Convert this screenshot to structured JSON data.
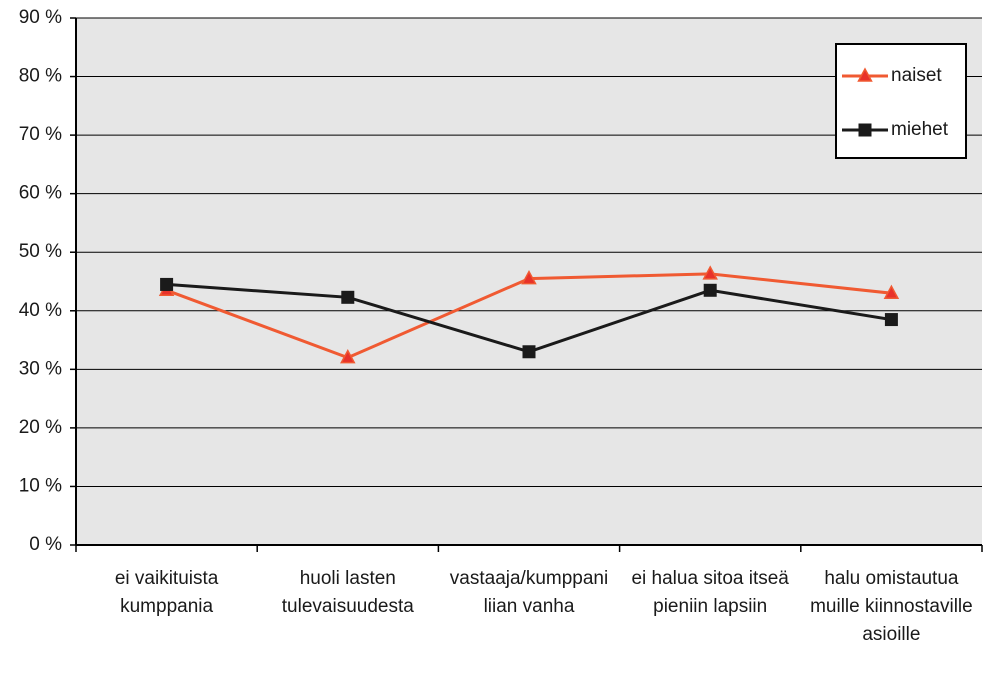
{
  "chart_data": {
    "type": "line",
    "categories": [
      "ei vaikituista kumppania",
      "huoli lasten tulevaisuudesta",
      "vastaaja/kumppani liian vanha",
      "ei halua sitoa itseä pieniin lapsiin",
      "halu omistautua muille kiinnostaville asioille"
    ],
    "series": [
      {
        "name": "naiset",
        "color": "#f05a32",
        "values": [
          43.5,
          32,
          45.5,
          46.3,
          43
        ]
      },
      {
        "name": "miehet",
        "color": "#1a1a1a",
        "values": [
          44.5,
          42.3,
          33,
          43.5,
          38.5
        ]
      }
    ],
    "ylim": [
      0,
      90
    ],
    "yticks": [
      {
        "value": 0,
        "label": "0 %"
      },
      {
        "value": 10,
        "label": "10 %"
      },
      {
        "value": 20,
        "label": "20 %"
      },
      {
        "value": 30,
        "label": "30 %"
      },
      {
        "value": 40,
        "label": "40 %"
      },
      {
        "value": 50,
        "label": "50 %"
      },
      {
        "value": 60,
        "label": "60 %"
      },
      {
        "value": 70,
        "label": "70 %"
      },
      {
        "value": 80,
        "label": "80 %"
      },
      {
        "value": 90,
        "label": "90 %"
      }
    ],
    "grid": true,
    "legend": "top-right"
  }
}
